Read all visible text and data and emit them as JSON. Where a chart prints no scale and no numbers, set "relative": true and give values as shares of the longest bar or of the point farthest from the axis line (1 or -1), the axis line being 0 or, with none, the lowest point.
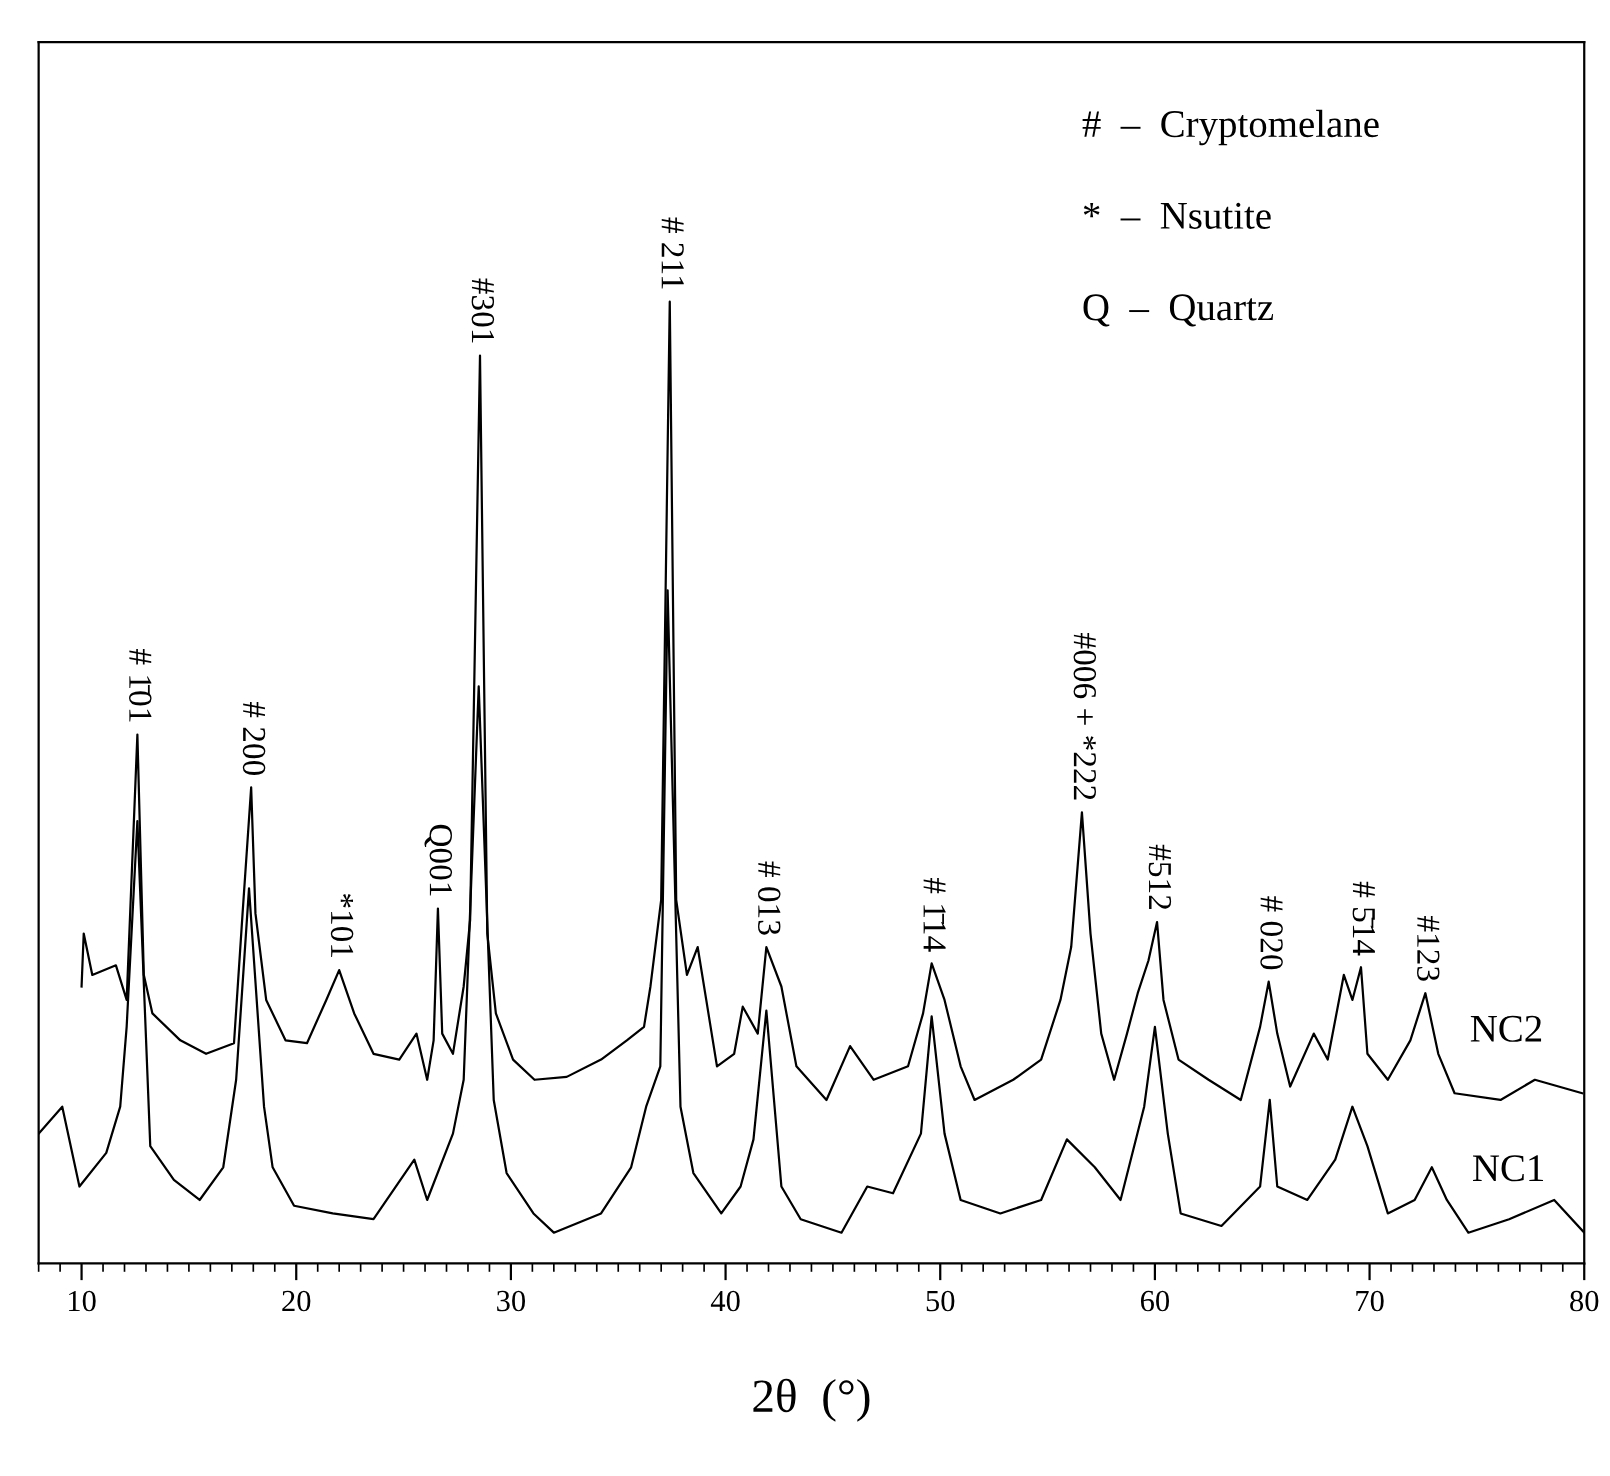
{
  "chart_data": {
    "type": "line",
    "relative": true,
    "xlabel": "2θ  (°)",
    "xlim": [
      8,
      80
    ],
    "xticks": [
      {
        "value": 8,
        "label": null
      },
      {
        "value": 9,
        "label": null
      },
      10,
      {
        "value": 11,
        "label": null
      },
      {
        "value": 12,
        "label": null
      },
      {
        "value": 13,
        "label": null
      },
      {
        "value": 14,
        "label": null
      },
      {
        "value": 15,
        "label": null
      },
      {
        "value": 16,
        "label": null
      },
      {
        "value": 17,
        "label": null
      },
      {
        "value": 18,
        "label": null
      },
      {
        "value": 19,
        "label": null
      },
      20,
      {
        "value": 21,
        "label": null
      },
      {
        "value": 22,
        "label": null
      },
      {
        "value": 23,
        "label": null
      },
      {
        "value": 24,
        "label": null
      },
      {
        "value": 25,
        "label": null
      },
      {
        "value": 26,
        "label": null
      },
      {
        "value": 27,
        "label": null
      },
      {
        "value": 28,
        "label": null
      },
      {
        "value": 29,
        "label": null
      },
      30,
      {
        "value": 31,
        "label": null
      },
      {
        "value": 32,
        "label": null
      },
      {
        "value": 33,
        "label": null
      },
      {
        "value": 34,
        "label": null
      },
      {
        "value": 35,
        "label": null
      },
      {
        "value": 36,
        "label": null
      },
      {
        "value": 37,
        "label": null
      },
      {
        "value": 38,
        "label": null
      },
      {
        "value": 39,
        "label": null
      },
      40,
      {
        "value": 41,
        "label": null
      },
      {
        "value": 42,
        "label": null
      },
      {
        "value": 43,
        "label": null
      },
      {
        "value": 44,
        "label": null
      },
      {
        "value": 45,
        "label": null
      },
      {
        "value": 46,
        "label": null
      },
      {
        "value": 47,
        "label": null
      },
      {
        "value": 48,
        "label": null
      },
      {
        "value": 49,
        "label": null
      },
      50,
      {
        "value": 51,
        "label": null
      },
      {
        "value": 52,
        "label": null
      },
      {
        "value": 53,
        "label": null
      },
      {
        "value": 54,
        "label": null
      },
      {
        "value": 55,
        "label": null
      },
      {
        "value": 56,
        "label": null
      },
      {
        "value": 57,
        "label": null
      },
      {
        "value": 58,
        "label": null
      },
      {
        "value": 59,
        "label": null
      },
      60,
      {
        "value": 61,
        "label": null
      },
      {
        "value": 62,
        "label": null
      },
      {
        "value": 63,
        "label": null
      },
      {
        "value": 64,
        "label": null
      },
      {
        "value": 65,
        "label": null
      },
      {
        "value": 66,
        "label": null
      },
      {
        "value": 67,
        "label": null
      },
      {
        "value": 68,
        "label": null
      },
      {
        "value": 69,
        "label": null
      },
      70,
      {
        "value": 71,
        "label": null
      },
      {
        "value": 72,
        "label": null
      },
      {
        "value": 73,
        "label": null
      },
      {
        "value": 74,
        "label": null
      },
      {
        "value": 75,
        "label": null
      },
      {
        "value": 76,
        "label": null
      },
      {
        "value": 77,
        "label": null
      },
      {
        "value": 78,
        "label": null
      },
      {
        "value": 79,
        "label": null
      },
      80
    ],
    "grid": false,
    "legend": false,
    "marker": "none",
    "line_style": "solid",
    "series": [
      {
        "name": "NC2",
        "color": "#000000",
        "x": [
          10.0,
          10.1,
          10.5,
          11.6,
          12.1,
          12.6,
          12.9,
          13.3,
          14.6,
          15.8,
          17.1,
          17.5,
          17.9,
          18.1,
          18.6,
          19.5,
          20.5,
          21.4,
          22.0,
          22.7,
          23.6,
          24.8,
          25.6,
          26.1,
          26.4,
          26.6,
          26.8,
          27.3,
          27.8,
          28.1,
          28.56,
          28.9,
          29.3,
          30.1,
          31.1,
          32.6,
          34.2,
          35.4,
          36.2,
          36.5,
          37.0,
          37.4,
          37.7,
          38.2,
          38.7,
          39.1,
          39.6,
          40.4,
          40.8,
          41.5,
          41.9,
          42.6,
          43.3,
          44.7,
          45.8,
          46.9,
          48.5,
          49.2,
          49.6,
          50.2,
          50.95,
          51.6,
          53.4,
          54.7,
          55.6,
          56.1,
          56.6,
          57.0,
          57.5,
          58.1,
          58.7,
          59.2,
          59.7,
          60.1,
          60.4,
          61.1,
          62.5,
          64.0,
          64.9,
          65.3,
          65.7,
          66.3,
          67.4,
          68.05,
          68.8,
          69.2,
          69.6,
          69.9,
          70.85,
          71.9,
          72.6,
          73.2,
          73.96,
          76.1,
          77.7,
          79.9
        ],
        "values": [
          0.288,
          0.343,
          0.3,
          0.31,
          0.274,
          0.55,
          0.3,
          0.26,
          0.232,
          0.218,
          0.229,
          0.364,
          0.495,
          0.364,
          0.274,
          0.232,
          0.229,
          0.274,
          0.305,
          0.26,
          0.218,
          0.212,
          0.239,
          0.191,
          0.232,
          0.369,
          0.239,
          0.218,
          0.288,
          0.357,
          0.944,
          0.343,
          0.26,
          0.212,
          0.191,
          0.194,
          0.212,
          0.232,
          0.246,
          0.288,
          0.378,
          1.0,
          0.378,
          0.3,
          0.329,
          0.274,
          0.205,
          0.218,
          0.267,
          0.239,
          0.329,
          0.288,
          0.205,
          0.17,
          0.226,
          0.191,
          0.205,
          0.26,
          0.312,
          0.274,
          0.205,
          0.17,
          0.191,
          0.212,
          0.274,
          0.329,
          0.469,
          0.343,
          0.239,
          0.191,
          0.239,
          0.281,
          0.315,
          0.355,
          0.274,
          0.212,
          0.191,
          0.17,
          0.246,
          0.293,
          0.239,
          0.184,
          0.239,
          0.212,
          0.3,
          0.274,
          0.308,
          0.218,
          0.191,
          0.232,
          0.281,
          0.218,
          0.177,
          0.17,
          0.191,
          0.177
        ]
      },
      {
        "name": "NC1",
        "color": "#000000",
        "x": [
          8.0,
          9.1,
          9.9,
          11.15,
          11.8,
          12.1,
          12.6,
          13.2,
          14.3,
          15.5,
          16.6,
          17.2,
          17.8,
          18.5,
          18.9,
          19.9,
          21.7,
          23.6,
          25.5,
          26.1,
          27.3,
          27.8,
          28.5,
          29.2,
          29.8,
          31.05,
          32.0,
          34.2,
          35.6,
          36.3,
          36.96,
          37.3,
          37.9,
          38.5,
          39.8,
          40.7,
          41.3,
          41.9,
          42.6,
          43.5,
          45.4,
          46.6,
          47.8,
          49.1,
          49.6,
          50.2,
          50.95,
          52.8,
          54.7,
          55.9,
          57.2,
          58.4,
          59.5,
          60.0,
          60.6,
          61.2,
          63.1,
          64.9,
          65.35,
          65.7,
          67.1,
          68.4,
          69.2,
          69.9,
          70.85,
          72.1,
          72.9,
          73.6,
          74.6,
          76.5,
          78.6,
          80.0
        ],
        "values": [
          0.135,
          0.163,
          0.08,
          0.115,
          0.163,
          0.246,
          0.46,
          0.122,
          0.087,
          0.066,
          0.1,
          0.191,
          0.39,
          0.163,
          0.1,
          0.06,
          0.052,
          0.046,
          0.108,
          0.066,
          0.135,
          0.191,
          0.6,
          0.17,
          0.094,
          0.052,
          0.032,
          0.052,
          0.1,
          0.163,
          0.205,
          0.7,
          0.163,
          0.094,
          0.052,
          0.08,
          0.129,
          0.263,
          0.08,
          0.046,
          0.032,
          0.08,
          0.073,
          0.135,
          0.257,
          0.135,
          0.066,
          0.052,
          0.066,
          0.129,
          0.1,
          0.066,
          0.163,
          0.246,
          0.135,
          0.052,
          0.039,
          0.08,
          0.17,
          0.08,
          0.066,
          0.108,
          0.163,
          0.122,
          0.052,
          0.066,
          0.1,
          0.066,
          0.032,
          0.046,
          0.066,
          0.032
        ]
      }
    ],
    "annotations": [
      {
        "text": "# 1̄01",
        "x": 12.6,
        "y": 0.55
      },
      {
        "text": "# 200",
        "x": 17.9,
        "y": 0.495
      },
      {
        "text": "*101",
        "x": 22.0,
        "y": 0.305
      },
      {
        "text": "Q001",
        "x": 26.6,
        "y": 0.369
      },
      {
        "text": "#301",
        "x": 28.56,
        "y": 0.944
      },
      {
        "text": "# 211",
        "x": 37.4,
        "y": 1.0
      },
      {
        "text": "# 013",
        "x": 41.9,
        "y": 0.329
      },
      {
        "text": "# 1̄14",
        "x": 49.6,
        "y": 0.312
      },
      {
        "text": "#006 + *222",
        "x": 56.6,
        "y": 0.469
      },
      {
        "text": "#512",
        "x": 60.1,
        "y": 0.355
      },
      {
        "text": "# 020",
        "x": 65.3,
        "y": 0.293
      },
      {
        "text": "# 5̄14",
        "x": 69.6,
        "y": 0.308
      },
      {
        "text": "#123",
        "x": 72.6,
        "y": 0.281
      },
      "#  –  Cryptomelane",
      "*  –  Nsutite",
      "Q  –  Quartz"
    ]
  }
}
